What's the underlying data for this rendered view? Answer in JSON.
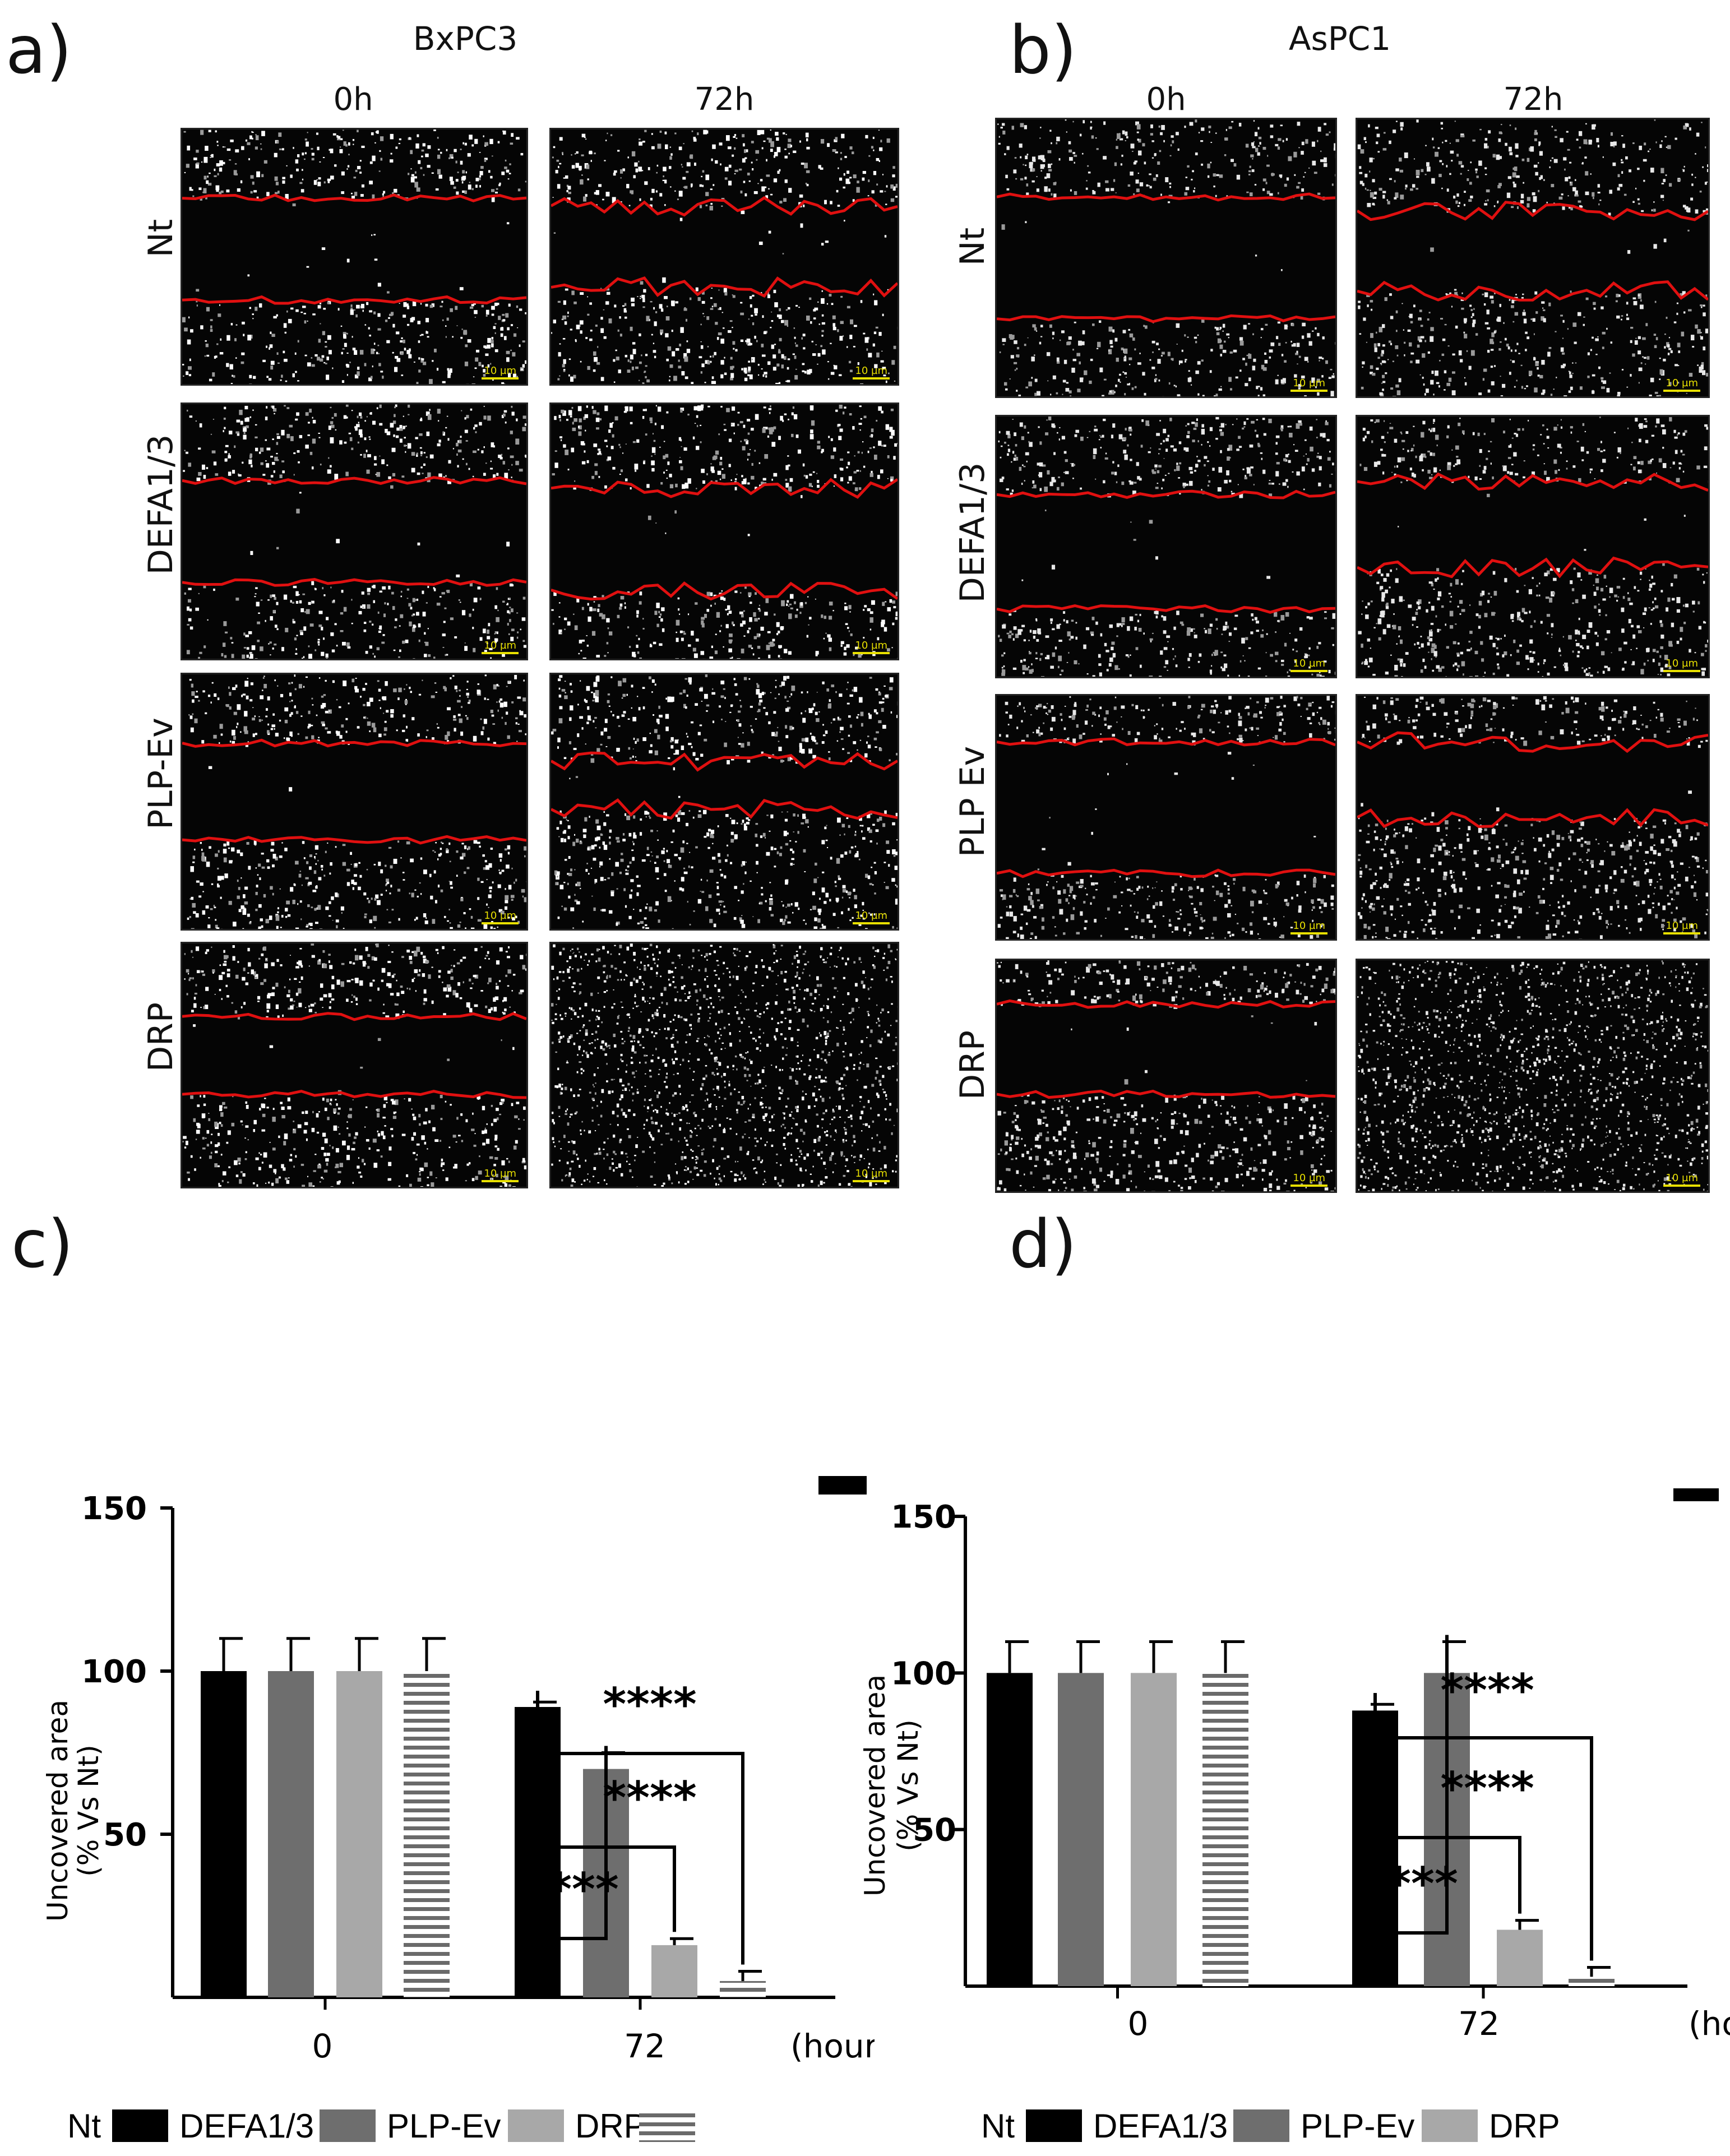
{
  "panels": {
    "a": {
      "letter": "a)",
      "cell_line": "BxPC3"
    },
    "b": {
      "letter": "b)",
      "cell_line": "AsPC1"
    },
    "c": {
      "letter": "c)"
    },
    "d": {
      "letter": "d)"
    }
  },
  "timepoints": [
    "0h",
    "72h"
  ],
  "conditions": {
    "a": [
      "Nt",
      "DEFA1/3",
      "PLP-Ev",
      "DRP"
    ],
    "b": [
      "Nt",
      "DEFA1/3",
      "PLP Ev",
      "DRP"
    ]
  },
  "scale_bar_label": "10 µm",
  "colors": {
    "Nt": "#000000",
    "DEFA1/3": "#6e6e6e",
    "PLP-Ev": "#a8a8a8",
    "DRP": "#dcdcdc",
    "wound_edge": "#e01010",
    "scale_bar": "#e8e000"
  },
  "chart_data": [
    {
      "id": "c",
      "type": "bar",
      "ylabel": [
        "Uncovered area",
        "(% Vs Nt)"
      ],
      "xunit": "(hours)",
      "categories": [
        "0",
        "72"
      ],
      "yticks": [
        50,
        100,
        150
      ],
      "ylim": [
        0,
        150
      ],
      "series": [
        {
          "name": "Nt",
          "values": [
            100,
            89
          ],
          "errors": [
            10,
            1.5
          ]
        },
        {
          "name": "DEFA1/3",
          "values": [
            100,
            70
          ],
          "errors": [
            10,
            5
          ]
        },
        {
          "name": "PLP-Ev",
          "values": [
            100,
            16
          ],
          "errors": [
            10,
            2
          ]
        },
        {
          "name": "DRP",
          "values": [
            100,
            5
          ],
          "errors": [
            10,
            3
          ]
        }
      ],
      "significance": [
        "****",
        "****",
        "****"
      ],
      "legend": [
        "Nt",
        "DEFA1/3",
        "PLP-Ev",
        "DRP"
      ]
    },
    {
      "id": "d",
      "type": "bar",
      "ylabel": [
        "Uncovered area",
        "(% Vs Nt)"
      ],
      "xunit": "(hours)",
      "categories": [
        "0",
        "72"
      ],
      "yticks": [
        50,
        100,
        150
      ],
      "ylim": [
        0,
        150
      ],
      "series": [
        {
          "name": "Nt",
          "values": [
            100,
            88
          ],
          "errors": [
            10,
            2
          ]
        },
        {
          "name": "DEFA1/3",
          "values": [
            100,
            100
          ],
          "errors": [
            10,
            10
          ]
        },
        {
          "name": "PLP-Ev",
          "values": [
            100,
            18
          ],
          "errors": [
            10,
            3
          ]
        },
        {
          "name": "DRP",
          "values": [
            100,
            3
          ],
          "errors": [
            10,
            3
          ]
        }
      ],
      "significance": [
        "****",
        "****",
        "****"
      ],
      "legend": [
        "Nt",
        "DEFA1/3",
        "PLP-Ev",
        "DRP"
      ]
    }
  ]
}
